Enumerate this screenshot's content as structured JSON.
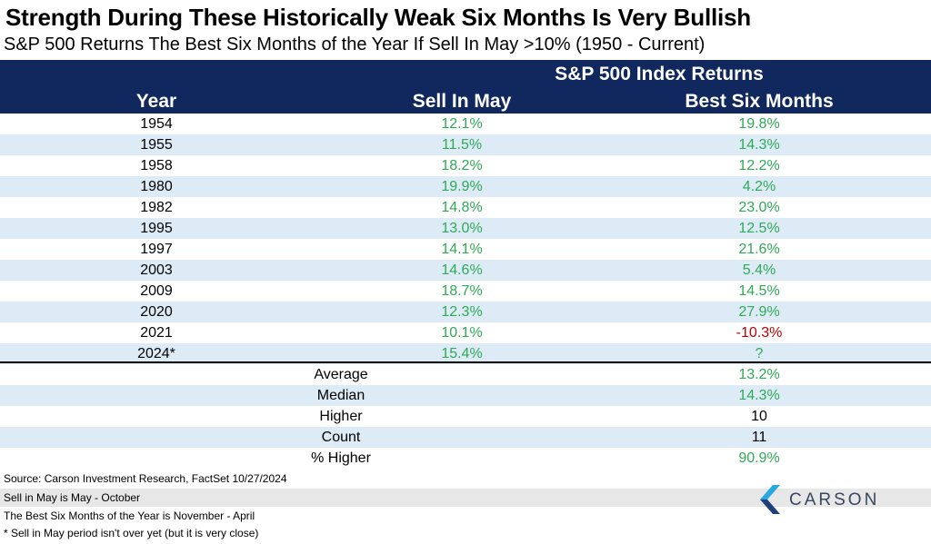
{
  "title": "Strength During These Historically Weak Six Months Is Very Bullish",
  "subtitle": "S&P 500 Returns The Best Six Months of the Year If Sell In May >10% (1950 - Current)",
  "table": {
    "group_header": "S&P 500 Index Returns",
    "col_year": "Year",
    "col_sell": "Sell In May",
    "col_best": "Best Six Months",
    "rows": [
      {
        "year": "1954",
        "sell": "12.1%",
        "best": "19.8%"
      },
      {
        "year": "1955",
        "sell": "11.5%",
        "best": "14.3%"
      },
      {
        "year": "1958",
        "sell": "18.2%",
        "best": "12.2%"
      },
      {
        "year": "1980",
        "sell": "19.9%",
        "best": "4.2%"
      },
      {
        "year": "1982",
        "sell": "14.8%",
        "best": "23.0%"
      },
      {
        "year": "1995",
        "sell": "13.0%",
        "best": "12.5%"
      },
      {
        "year": "1997",
        "sell": "14.1%",
        "best": "21.6%"
      },
      {
        "year": "2003",
        "sell": "14.6%",
        "best": "5.4%"
      },
      {
        "year": "2009",
        "sell": "18.7%",
        "best": "14.5%"
      },
      {
        "year": "2020",
        "sell": "12.3%",
        "best": "27.9%"
      },
      {
        "year": "2021",
        "sell": "10.1%",
        "best": "-10.3%"
      },
      {
        "year": "2024*",
        "sell": "15.4%",
        "best": "?"
      }
    ],
    "stats": [
      {
        "label": "Average",
        "value": "13.2%"
      },
      {
        "label": "Median",
        "value": "14.3%"
      },
      {
        "label": "Higher",
        "value": "10"
      },
      {
        "label": "Count",
        "value": "11"
      },
      {
        "label": "% Higher",
        "value": "90.9%"
      }
    ]
  },
  "footer": {
    "source": "Source: Carson Investment Research, FactSet 10/27/2024",
    "note1": "Sell in May is May - October",
    "note2": "The Best Six Months of the Year is November - April",
    "note3": "* Sell in May period isn't over yet (but it is very close)"
  },
  "logo": {
    "text": "CARSON",
    "icon": "carson-chevron-logo-icon"
  },
  "colors": {
    "header_bg": "#10285e",
    "alt_row_bg": "#ddebf7",
    "positive": "#2eaa55",
    "negative": "#c00000",
    "footer_bar": "#e7e7e7"
  }
}
